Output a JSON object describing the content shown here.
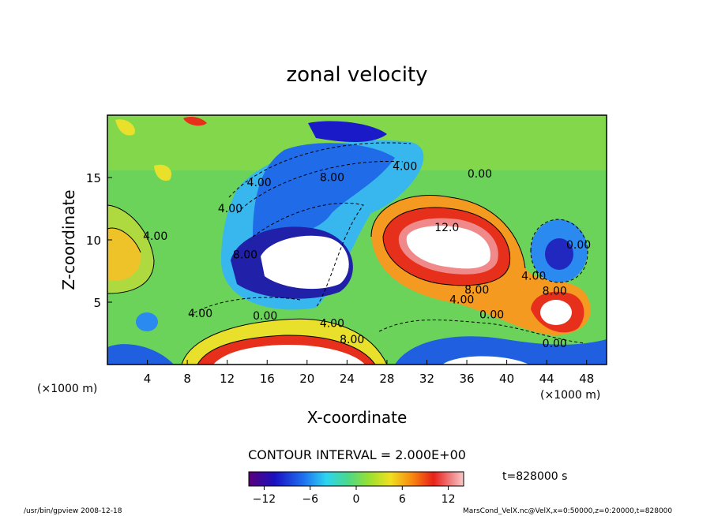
{
  "chart_data": {
    "type": "heatmap",
    "title": "zonal velocity",
    "xlabel": "X-coordinate",
    "ylabel": "Z-coordinate",
    "x_unit": "(×1000 m)",
    "y_unit": "(×1000 m)",
    "xlim": [
      0,
      50
    ],
    "ylim": [
      0,
      20
    ],
    "x_ticks": [
      4,
      8,
      12,
      16,
      20,
      24,
      28,
      32,
      36,
      40,
      44,
      48
    ],
    "y_ticks": [
      5,
      10,
      15
    ],
    "contour_interval_text": "CONTOUR INTERVAL = 2.000E+00",
    "time_text": "t=828000 s",
    "colorbar": {
      "range": [
        -14,
        14
      ],
      "ticks": [
        -12,
        -6,
        0,
        6,
        12
      ],
      "tick_labels": [
        "−12",
        "−6",
        "0",
        "6",
        "12"
      ]
    },
    "contour_labels": [
      {
        "text": "8.00",
        "x": 22.5,
        "y": 14.7
      },
      {
        "text": "4.00",
        "x": 15.2,
        "y": 14.3
      },
      {
        "text": "4.00",
        "x": 29.8,
        "y": 15.6
      },
      {
        "text": "0.00",
        "x": 37.3,
        "y": 15.0
      },
      {
        "text": "12.0",
        "x": 34.0,
        "y": 10.7
      },
      {
        "text": "8.00",
        "x": 37.0,
        "y": 5.7
      },
      {
        "text": "4.00",
        "x": 35.5,
        "y": 4.9
      },
      {
        "text": "0.00",
        "x": 38.5,
        "y": 3.7
      },
      {
        "text": "4.00",
        "x": 4.8,
        "y": 10.0
      },
      {
        "text": "8.00",
        "x": 13.8,
        "y": 8.5
      },
      {
        "text": "0.00",
        "x": 15.8,
        "y": 3.6
      },
      {
        "text": "4.00",
        "x": 22.5,
        "y": 3.0
      },
      {
        "text": "8.00",
        "x": 24.5,
        "y": 1.7
      },
      {
        "text": "4.00",
        "x": 9.3,
        "y": 3.8
      },
      {
        "text": "0.00",
        "x": 47.2,
        "y": 9.3
      },
      {
        "text": "4.00",
        "x": 42.7,
        "y": 6.8
      },
      {
        "text": "8.00",
        "x": 44.8,
        "y": 5.6
      },
      {
        "text": "0.00",
        "x": 44.8,
        "y": 1.4
      },
      {
        "text": "4.00",
        "x": 12.3,
        "y": 12.2
      }
    ]
  },
  "footer": {
    "program": "/usr/bin/gpview   2008-12-18",
    "source": "MarsCond_VelX.nc@VelX,x=0:50000,z=0:20000,t=828000"
  }
}
